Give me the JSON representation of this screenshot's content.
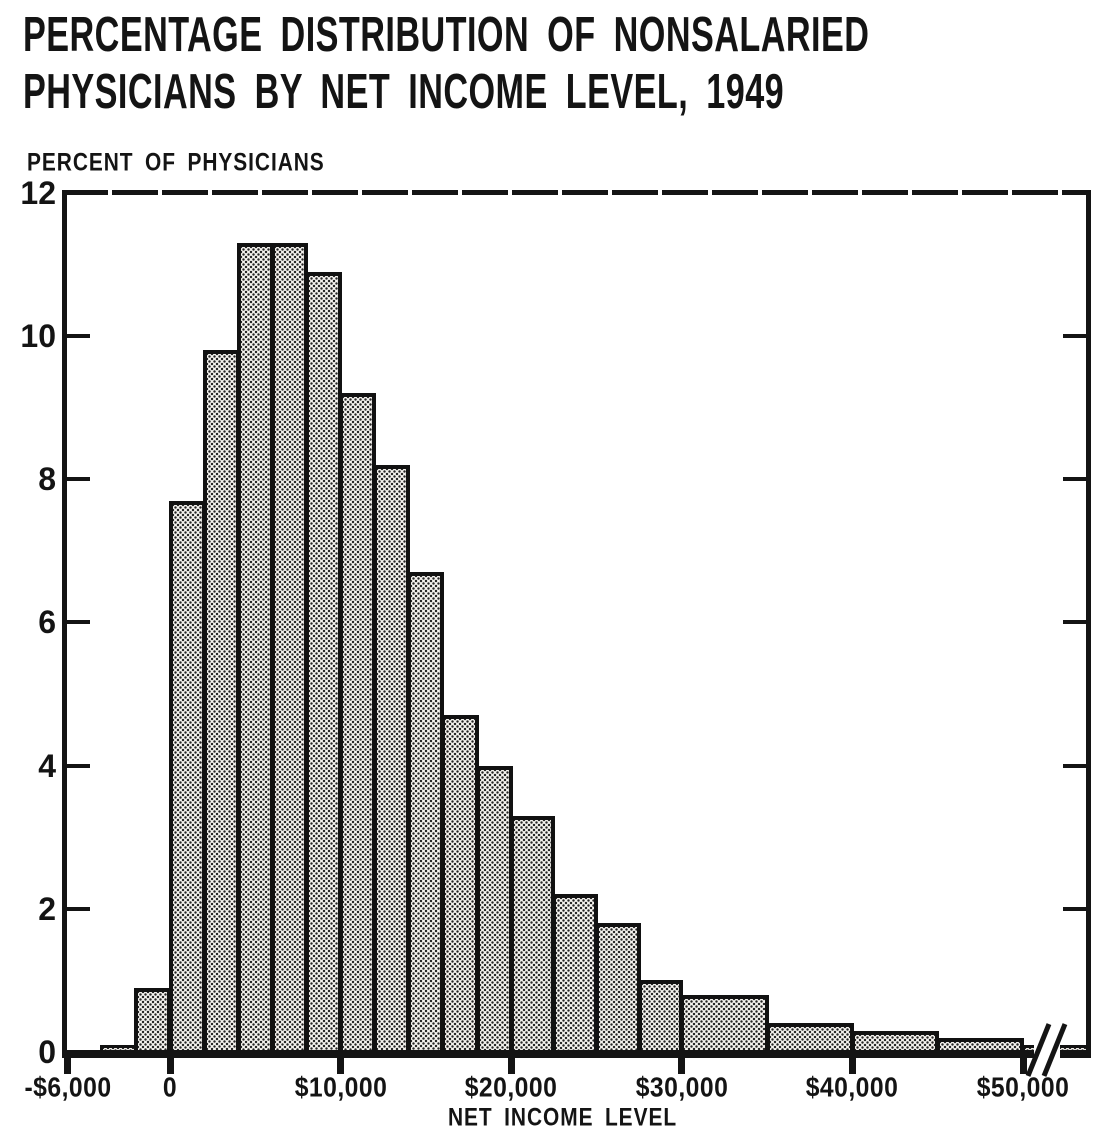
{
  "header": {
    "line1": "PERCENTAGE DISTRIBUTION OF NONSALARIED",
    "line2": "PHYSICIANS BY NET INCOME LEVEL, 1949"
  },
  "colors": {
    "ink": "#141414",
    "paper": "#ffffff",
    "bar_fill": "#f5f3ef"
  },
  "chart_data": {
    "type": "bar",
    "title": "PERCENTAGE DISTRIBUTION OF NONSALARIED PHYSICIANS BY NET INCOME LEVEL, 1949",
    "xlabel": "NET INCOME LEVEL",
    "ylabel": "PERCENT OF PHYSICIANS",
    "ylim": [
      0,
      12
    ],
    "y_ticks": [
      0,
      2,
      4,
      6,
      8,
      10,
      12
    ],
    "y_ticks_with_marks": [
      2,
      4,
      6,
      8,
      10
    ],
    "grid": false,
    "legend": false,
    "x_ticks": [
      {
        "value": -6000,
        "label": "-$6,000"
      },
      {
        "value": 0,
        "label": "0"
      },
      {
        "value": 10000,
        "label": "$10,000"
      },
      {
        "value": 20000,
        "label": "$20,000"
      },
      {
        "value": 30000,
        "label": "$30,000"
      },
      {
        "value": 40000,
        "label": "$40,000"
      },
      {
        "value": 50000,
        "label": "$50,000"
      }
    ],
    "axis_break_after_value": 50000,
    "bins": [
      {
        "from": -4000,
        "to": -2000,
        "value": 0.1
      },
      {
        "from": -2000,
        "to": 0,
        "value": 0.9
      },
      {
        "from": 0,
        "to": 2000,
        "value": 7.7
      },
      {
        "from": 2000,
        "to": 4000,
        "value": 9.8
      },
      {
        "from": 4000,
        "to": 6000,
        "value": 11.3
      },
      {
        "from": 6000,
        "to": 8000,
        "value": 11.3
      },
      {
        "from": 8000,
        "to": 10000,
        "value": 10.9
      },
      {
        "from": 10000,
        "to": 12000,
        "value": 9.2
      },
      {
        "from": 12000,
        "to": 14000,
        "value": 8.2
      },
      {
        "from": 14000,
        "to": 16000,
        "value": 6.7
      },
      {
        "from": 16000,
        "to": 18000,
        "value": 4.7
      },
      {
        "from": 18000,
        "to": 20000,
        "value": 4.0
      },
      {
        "from": 20000,
        "to": 22500,
        "value": 3.3
      },
      {
        "from": 22500,
        "to": 25000,
        "value": 2.2
      },
      {
        "from": 25000,
        "to": 27500,
        "value": 1.8
      },
      {
        "from": 27500,
        "to": 30000,
        "value": 1.0
      },
      {
        "from": 30000,
        "to": 35000,
        "value": 0.8
      },
      {
        "from": 35000,
        "to": 40000,
        "value": 0.4
      },
      {
        "from": 40000,
        "to": 45000,
        "value": 0.3
      },
      {
        "from": 45000,
        "to": 50000,
        "value": 0.2
      },
      {
        "from": 50000,
        "to": null,
        "value": 0.1,
        "open_ended": true
      }
    ]
  }
}
